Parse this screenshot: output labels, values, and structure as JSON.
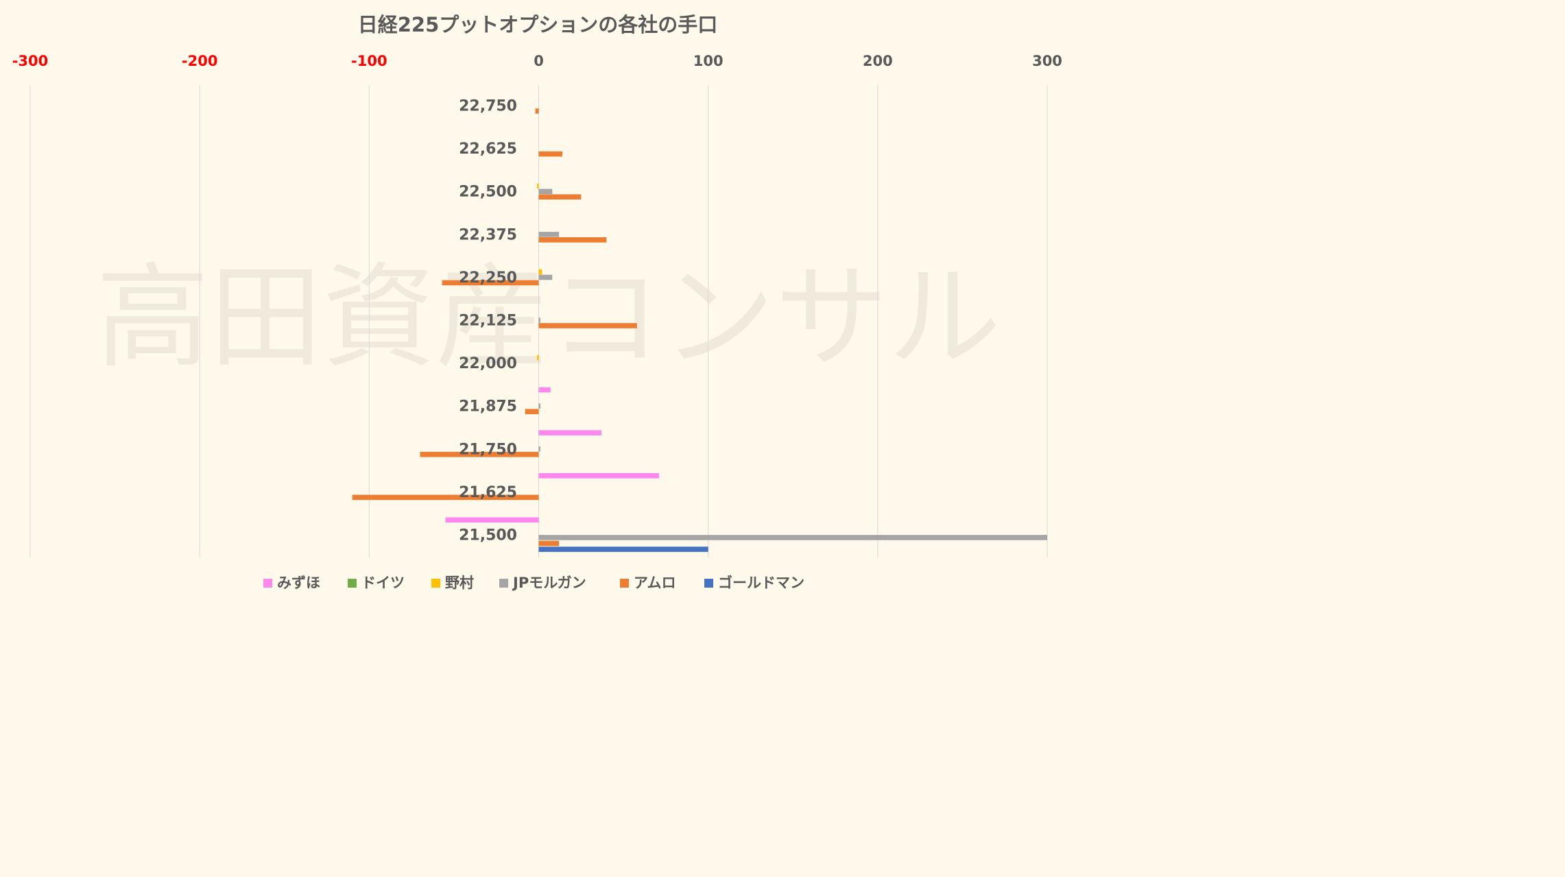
{
  "watermark": "高田資産コンサル",
  "chart_data": {
    "type": "bar",
    "orientation": "horizontal",
    "title": "日経225プットオプションの各社の手口",
    "xlim": [
      -300,
      300
    ],
    "x_ticks": [
      -300,
      -200,
      -100,
      0,
      100,
      200,
      300
    ],
    "x_tick_labels": [
      "-300",
      "-200",
      "-100",
      "0",
      "100",
      "200",
      "300"
    ],
    "negative_tick_color": "#ff0000",
    "axis_position": "top",
    "grid": true,
    "legend_position": "bottom",
    "categories": [
      "22,750",
      "22,625",
      "22,500",
      "22,375",
      "22,250",
      "22,125",
      "22,000",
      "21,875",
      "21,750",
      "21,625",
      "21,500"
    ],
    "series": [
      {
        "name": "みずほ",
        "color": "#ff88ee",
        "values": [
          0,
          0,
          0,
          0,
          0,
          0,
          0,
          7,
          37,
          71,
          -55
        ]
      },
      {
        "name": "ドイツ",
        "color": "#70ad47",
        "values": [
          0,
          0,
          0,
          0,
          0,
          0,
          0,
          0,
          0,
          0,
          0
        ]
      },
      {
        "name": "野村",
        "color": "#ffc000",
        "values": [
          0,
          0,
          -1,
          0,
          2,
          0,
          -1,
          0,
          0,
          0,
          0
        ]
      },
      {
        "name": "JPモルガン",
        "color": "#a5a5a5",
        "values": [
          0,
          0,
          8,
          12,
          8,
          1,
          0,
          1,
          1,
          0,
          300
        ]
      },
      {
        "name": "アムロ",
        "color": "#ed7d31",
        "values": [
          -2,
          14,
          25,
          40,
          -57,
          58,
          0,
          -8,
          -70,
          -110,
          12
        ]
      },
      {
        "name": "ゴールドマン",
        "color": "#4472c4",
        "values": [
          0,
          0,
          0,
          0,
          0,
          0,
          0,
          0,
          0,
          0,
          100
        ]
      }
    ]
  }
}
